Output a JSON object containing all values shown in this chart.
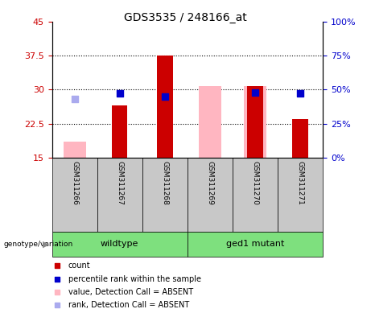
{
  "title": "GDS3535 / 248166_at",
  "samples": [
    "GSM311266",
    "GSM311267",
    "GSM311268",
    "GSM311269",
    "GSM311270",
    "GSM311271"
  ],
  "ylim_left": [
    15,
    45
  ],
  "ylim_right": [
    0,
    100
  ],
  "yticks_left": [
    15,
    22.5,
    30,
    37.5,
    45
  ],
  "yticks_right": [
    0,
    25,
    50,
    75,
    100
  ],
  "ytick_labels_left": [
    "15",
    "22.5",
    "30",
    "37.5",
    "45"
  ],
  "ytick_labels_right": [
    "0%",
    "25%",
    "50%",
    "75%",
    "100%"
  ],
  "red_bars": [
    null,
    26.5,
    37.5,
    null,
    30.8,
    23.5
  ],
  "red_bar_base": 15,
  "pink_bars": [
    18.5,
    null,
    null,
    30.8,
    30.8,
    null
  ],
  "pink_bar_base": 15,
  "blue_squares_pct": [
    null,
    47.0,
    45.0,
    null,
    48.0,
    47.5
  ],
  "light_blue_squares_pct": [
    43.0,
    null,
    null,
    null,
    null,
    null
  ],
  "red_bar_width": 0.35,
  "pink_bar_width": 0.5,
  "dot_size": 30,
  "red_color": "#CC0000",
  "pink_color": "#FFB6C1",
  "blue_color": "#0000CC",
  "light_blue_color": "#AAAAEE",
  "grid_color": "black",
  "bg_plot": "white",
  "bg_sample": "#C8C8C8",
  "group_info": [
    {
      "label": "wildtype",
      "start": 0,
      "end": 2,
      "color": "#7EE07E"
    },
    {
      "label": "ged1 mutant",
      "start": 3,
      "end": 5,
      "color": "#7EE07E"
    }
  ],
  "legend_items": [
    "count",
    "percentile rank within the sample",
    "value, Detection Call = ABSENT",
    "rank, Detection Call = ABSENT"
  ],
  "legend_colors": [
    "#CC0000",
    "#0000CC",
    "#FFB6C1",
    "#AAAAEE"
  ],
  "left_tick_color": "#CC0000",
  "right_tick_color": "#0000CC"
}
